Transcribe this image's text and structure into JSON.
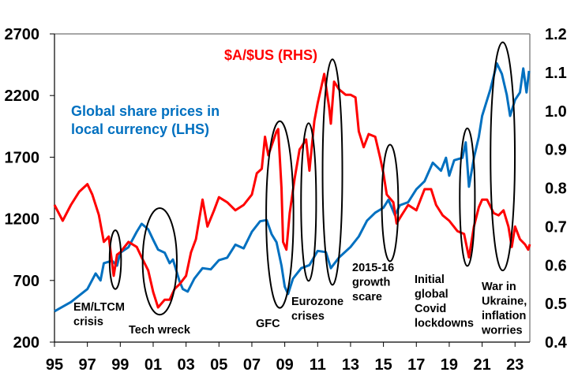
{
  "chart_data": {
    "type": "line",
    "title": "",
    "xlabel": "",
    "ylabel_left": "",
    "ylabel_right": "",
    "x_tick_labels": [
      "95",
      "97",
      "99",
      "01",
      "03",
      "05",
      "07",
      "09",
      "11",
      "13",
      "15",
      "17",
      "19",
      "21",
      "23"
    ],
    "x_ticks": [
      1995,
      1997,
      1999,
      2001,
      2003,
      2005,
      2007,
      2009,
      2011,
      2013,
      2015,
      2017,
      2019,
      2021,
      2023
    ],
    "xlim": [
      1995,
      2023.9
    ],
    "y_left": {
      "lim": [
        200,
        2700
      ],
      "ticks": [
        200,
        700,
        1200,
        1700,
        2200,
        2700
      ],
      "tick_labels": [
        "200",
        "700",
        "1200",
        "1700",
        "2200",
        "2700"
      ]
    },
    "y_right": {
      "lim": [
        0.4,
        1.2
      ],
      "ticks": [
        0.4,
        0.5,
        0.6,
        0.7,
        0.8,
        0.9,
        1.0,
        1.1,
        1.2
      ],
      "tick_labels": [
        "0.4",
        "0.5",
        "0.6",
        "0.7",
        "0.8",
        "0.9",
        "1.0",
        "1.1",
        "1.2"
      ]
    },
    "grid": false,
    "series": [
      {
        "name": "Global share prices in local currency (LHS)",
        "label_lines": [
          "Global share prices in",
          "local currency (LHS)"
        ],
        "axis": "left",
        "color": "#0070C0",
        "x": [
          1995,
          1996,
          1997,
          1997.5,
          1997.8,
          1998,
          1998.5,
          1998.8,
          1999,
          1999.5,
          2000,
          2000.3,
          2000.7,
          2001,
          2001.3,
          2001.7,
          2002,
          2002.2,
          2002.6,
          2002.8,
          2003.1,
          2003.5,
          2004,
          2004.5,
          2005,
          2005.5,
          2006,
          2006.5,
          2007,
          2007.5,
          2007.9,
          2008.2,
          2008.5,
          2008.8,
          2009,
          2009.2,
          2009.5,
          2010,
          2010.5,
          2011,
          2011.5,
          2011.8,
          2012.3,
          2013,
          2013.5,
          2014,
          2014.5,
          2015,
          2015.3,
          2015.7,
          2016,
          2016.5,
          2017,
          2017.5,
          2018,
          2018.5,
          2018.8,
          2019,
          2019.3,
          2019.8,
          2020,
          2020.2,
          2020.5,
          2020.8,
          2021,
          2021.5,
          2021.9,
          2022.2,
          2022.5,
          2022.7,
          2023,
          2023.3,
          2023.5,
          2023.7,
          2023.85
        ],
        "values": [
          450,
          525,
          630,
          757,
          700,
          840,
          860,
          820,
          925,
          970,
          1095,
          1160,
          1115,
          1030,
          950,
          925,
          840,
          870,
          695,
          630,
          610,
          715,
          800,
          790,
          865,
          885,
          990,
          960,
          1095,
          1180,
          1190,
          1075,
          1010,
          820,
          650,
          590,
          715,
          800,
          825,
          940,
          930,
          800,
          887,
          972,
          1057,
          1185,
          1250,
          1290,
          1355,
          1230,
          1310,
          1335,
          1440,
          1505,
          1655,
          1590,
          1695,
          1550,
          1675,
          1695,
          1820,
          1460,
          1695,
          1865,
          2035,
          2250,
          2460,
          2375,
          2205,
          2035,
          2165,
          2225,
          2420,
          2225,
          2400
        ]
      },
      {
        "name": "$A/$US (RHS)",
        "label_lines": [
          "$A/$US (RHS)"
        ],
        "axis": "right",
        "color": "#FF0000",
        "x": [
          1995,
          1995.5,
          1996,
          1996.5,
          1997,
          1997.3,
          1997.7,
          1998,
          1998.3,
          1998.6,
          1998.8,
          1999,
          1999.5,
          2000,
          2000.3,
          2000.7,
          2001,
          2001.3,
          2001.7,
          2002,
          2002.3,
          2002.6,
          2003,
          2003.3,
          2003.6,
          2004,
          2004.3,
          2004.7,
          2005,
          2005.5,
          2006,
          2006.5,
          2007,
          2007.3,
          2007.6,
          2007.8,
          2008,
          2008.5,
          2008.6,
          2008.8,
          2008.9,
          2009.1,
          2009.3,
          2009.6,
          2009.9,
          2010,
          2010.3,
          2010.5,
          2010.8,
          2011,
          2011.4,
          2011.7,
          2011.8,
          2012,
          2012.3,
          2012.7,
          2013,
          2013.3,
          2013.5,
          2013.8,
          2014.1,
          2014.5,
          2014.8,
          2015,
          2015.2,
          2015.6,
          2015.8,
          2016.1,
          2016.5,
          2017,
          2017.5,
          2017.9,
          2018.2,
          2018.6,
          2019,
          2019.5,
          2019.9,
          2020.2,
          2020.5,
          2020.8,
          2021,
          2021.3,
          2021.7,
          2022,
          2022.3,
          2022.6,
          2022.8,
          2023,
          2023.3,
          2023.6,
          2023.8,
          2023.9
        ],
        "values": [
          0.756,
          0.715,
          0.756,
          0.79,
          0.81,
          0.783,
          0.73,
          0.66,
          0.674,
          0.572,
          0.627,
          0.633,
          0.66,
          0.647,
          0.62,
          0.586,
          0.53,
          0.49,
          0.51,
          0.51,
          0.538,
          0.55,
          0.572,
          0.633,
          0.667,
          0.77,
          0.7,
          0.742,
          0.776,
          0.763,
          0.742,
          0.756,
          0.783,
          0.838,
          0.85,
          0.933,
          0.885,
          0.947,
          0.953,
          0.8,
          0.66,
          0.64,
          0.735,
          0.824,
          0.9,
          0.906,
          0.926,
          0.845,
          0.974,
          1.02,
          1.096,
          1.008,
          0.967,
          1.076,
          1.056,
          1.042,
          1.042,
          1.035,
          0.947,
          0.906,
          0.94,
          0.933,
          0.879,
          0.838,
          0.783,
          0.763,
          0.708,
          0.729,
          0.756,
          0.742,
          0.797,
          0.797,
          0.756,
          0.729,
          0.715,
          0.688,
          0.681,
          0.62,
          0.7,
          0.75,
          0.77,
          0.77,
          0.735,
          0.729,
          0.742,
          0.7,
          0.647,
          0.7,
          0.667,
          0.654,
          0.64,
          0.654
        ]
      }
    ],
    "annotations": [
      {
        "id": "em",
        "lines": [
          "EM/LTCM",
          "crisis"
        ],
        "year_center": 1998.7,
        "year_halfwidth": 0.35,
        "lhs_range": [
          630,
          1107
        ]
      },
      {
        "id": "tech",
        "lines": [
          "Tech wreck"
        ],
        "year_center": 2001.4,
        "year_halfwidth": 1.04,
        "lhs_range": [
          422,
          1287
        ]
      },
      {
        "id": "gfc",
        "lines": [
          "GFC"
        ],
        "year_center": 2008.7,
        "year_halfwidth": 0.83,
        "lhs_range": [
          477,
          1992
        ]
      },
      {
        "id": "eurozone",
        "lines": [
          "Eurozone",
          "crises"
        ],
        "year_center": 2010.45,
        "year_halfwidth": 0.46,
        "lhs_range": [
          696,
          1976
        ]
      },
      {
        "id": "eurozone2",
        "lines": [],
        "year_center": 2011.9,
        "year_halfwidth": 0.6,
        "lhs_range": [
          664,
          2494
        ]
      },
      {
        "id": "growth",
        "lines": [
          "2015-16",
          "growth",
          "scare"
        ],
        "year_center": 2015.4,
        "year_halfwidth": 0.5,
        "lhs_range": [
          855,
          1802
        ]
      },
      {
        "id": "covid",
        "lines": [
          "Initial",
          "global",
          "Covid",
          "lockdowns"
        ],
        "year_center": 2020.1,
        "year_halfwidth": 0.46,
        "lhs_range": [
          817,
          1934
        ]
      },
      {
        "id": "war",
        "lines": [
          "War in",
          "Ukraine,",
          "inflation",
          "worries"
        ],
        "year_center": 2022.25,
        "year_halfwidth": 0.74,
        "lhs_range": [
          781,
          2632
        ]
      }
    ]
  }
}
